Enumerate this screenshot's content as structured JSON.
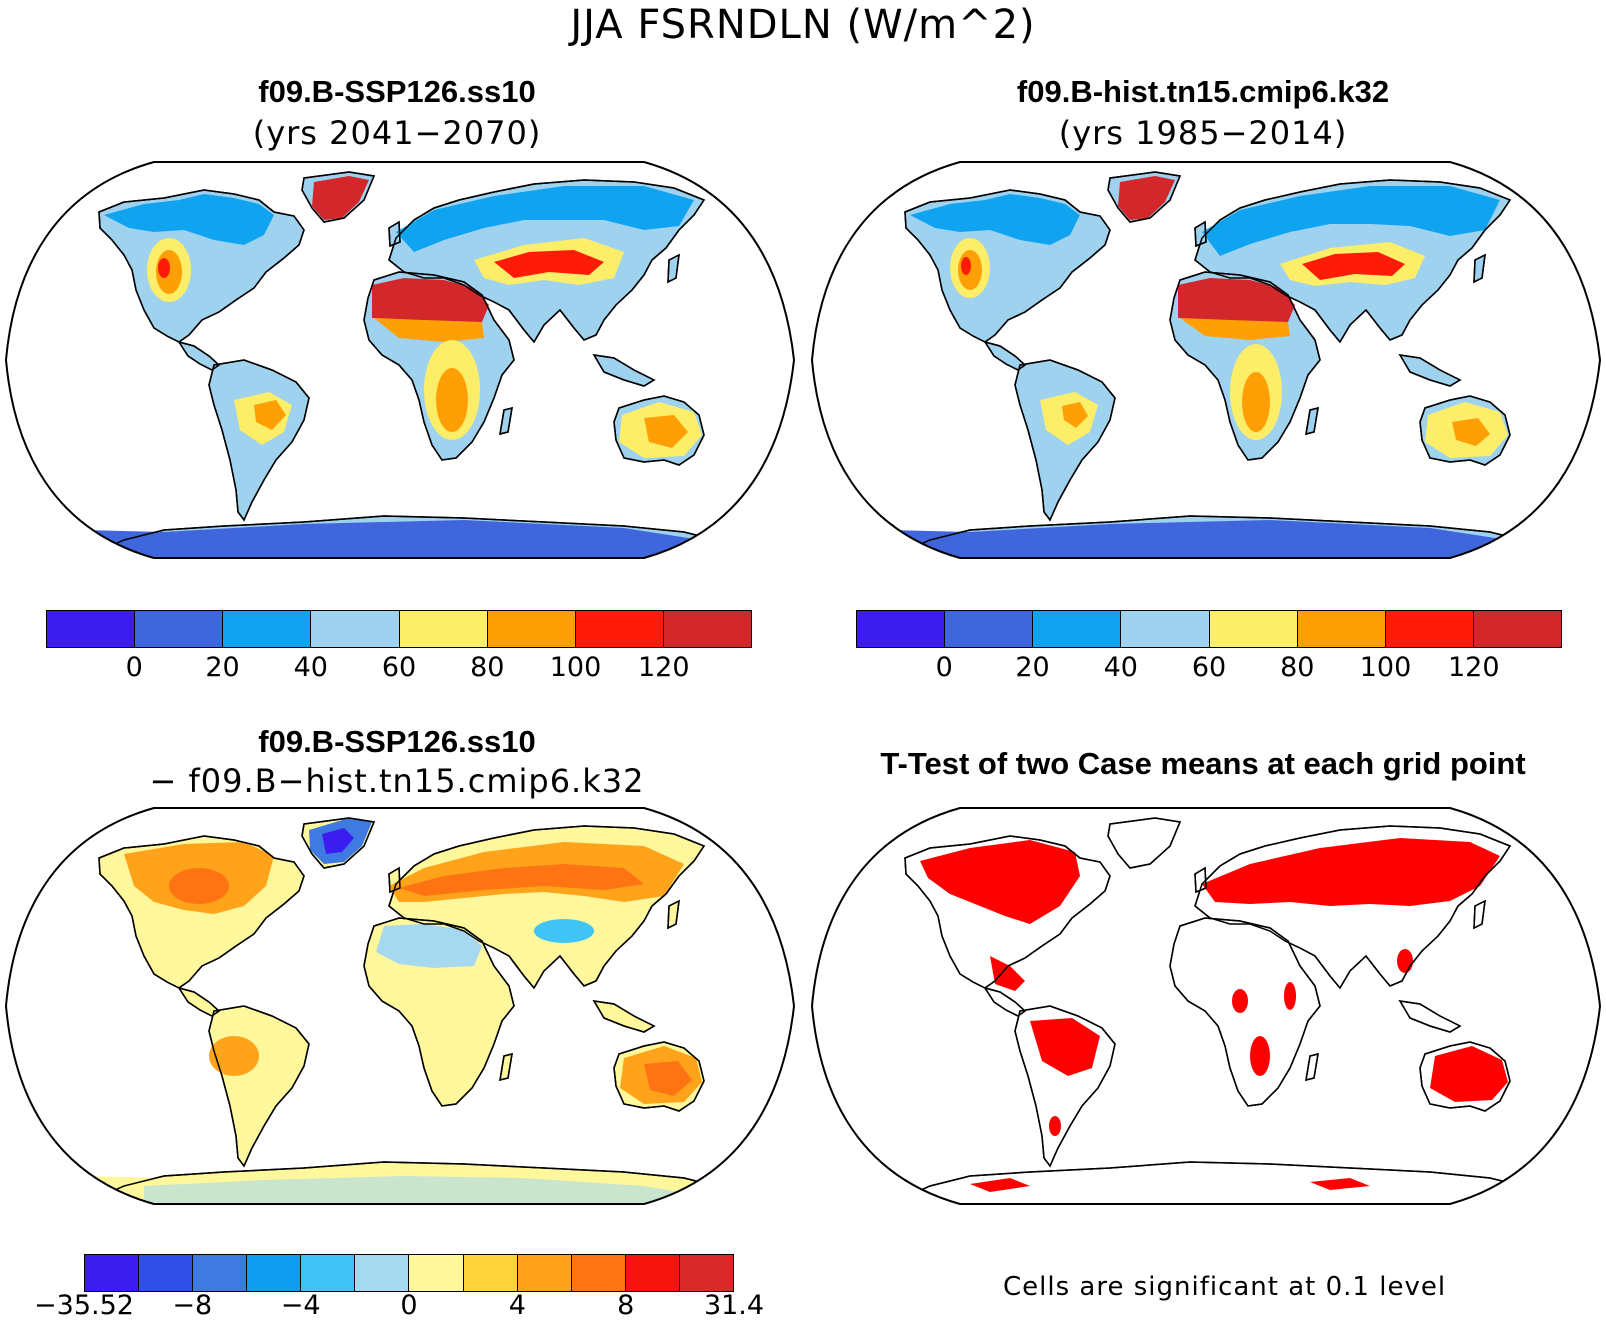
{
  "main_title": "JJA FSRNDLN (W/m^2)",
  "panels": {
    "case": {
      "title": "f09.B-SSP126.ss10",
      "subtitle": "(yrs 2041−2070)"
    },
    "control": {
      "title": "f09.B-hist.tn15.cmip6.k32",
      "subtitle": "(yrs 1985−2014)"
    },
    "diff": {
      "title": "f09.B-SSP126.ss10",
      "subtitle": "− f09.B−hist.tn15.cmip6.k32"
    },
    "ttest": {
      "title": "T-Test of two Case means at each grid point",
      "note": "Cells are significant at 0.1 level"
    }
  },
  "colorbar_main": {
    "colors": [
      "#3d1cf0",
      "#3f66dc",
      "#10a4f0",
      "#9fd2ef",
      "#fdee6a",
      "#fe9f05",
      "#fe1b08",
      "#d2282b"
    ],
    "ticks": [
      "0",
      "20",
      "40",
      "60",
      "80",
      "100",
      "120"
    ]
  },
  "colorbar_diff": {
    "colors": [
      "#3d1cf0",
      "#2f4fe6",
      "#3f7ae2",
      "#109ef0",
      "#3fc4f5",
      "#a6d8f0",
      "#fff79c",
      "#fed43a",
      "#fea31a",
      "#fe7412",
      "#f6140c",
      "#d92a2a"
    ],
    "ticks": [
      "−35.52",
      "−8",
      "−4",
      "0",
      "4",
      "8",
      "31.4"
    ]
  },
  "significance_color": "#ff0000"
}
